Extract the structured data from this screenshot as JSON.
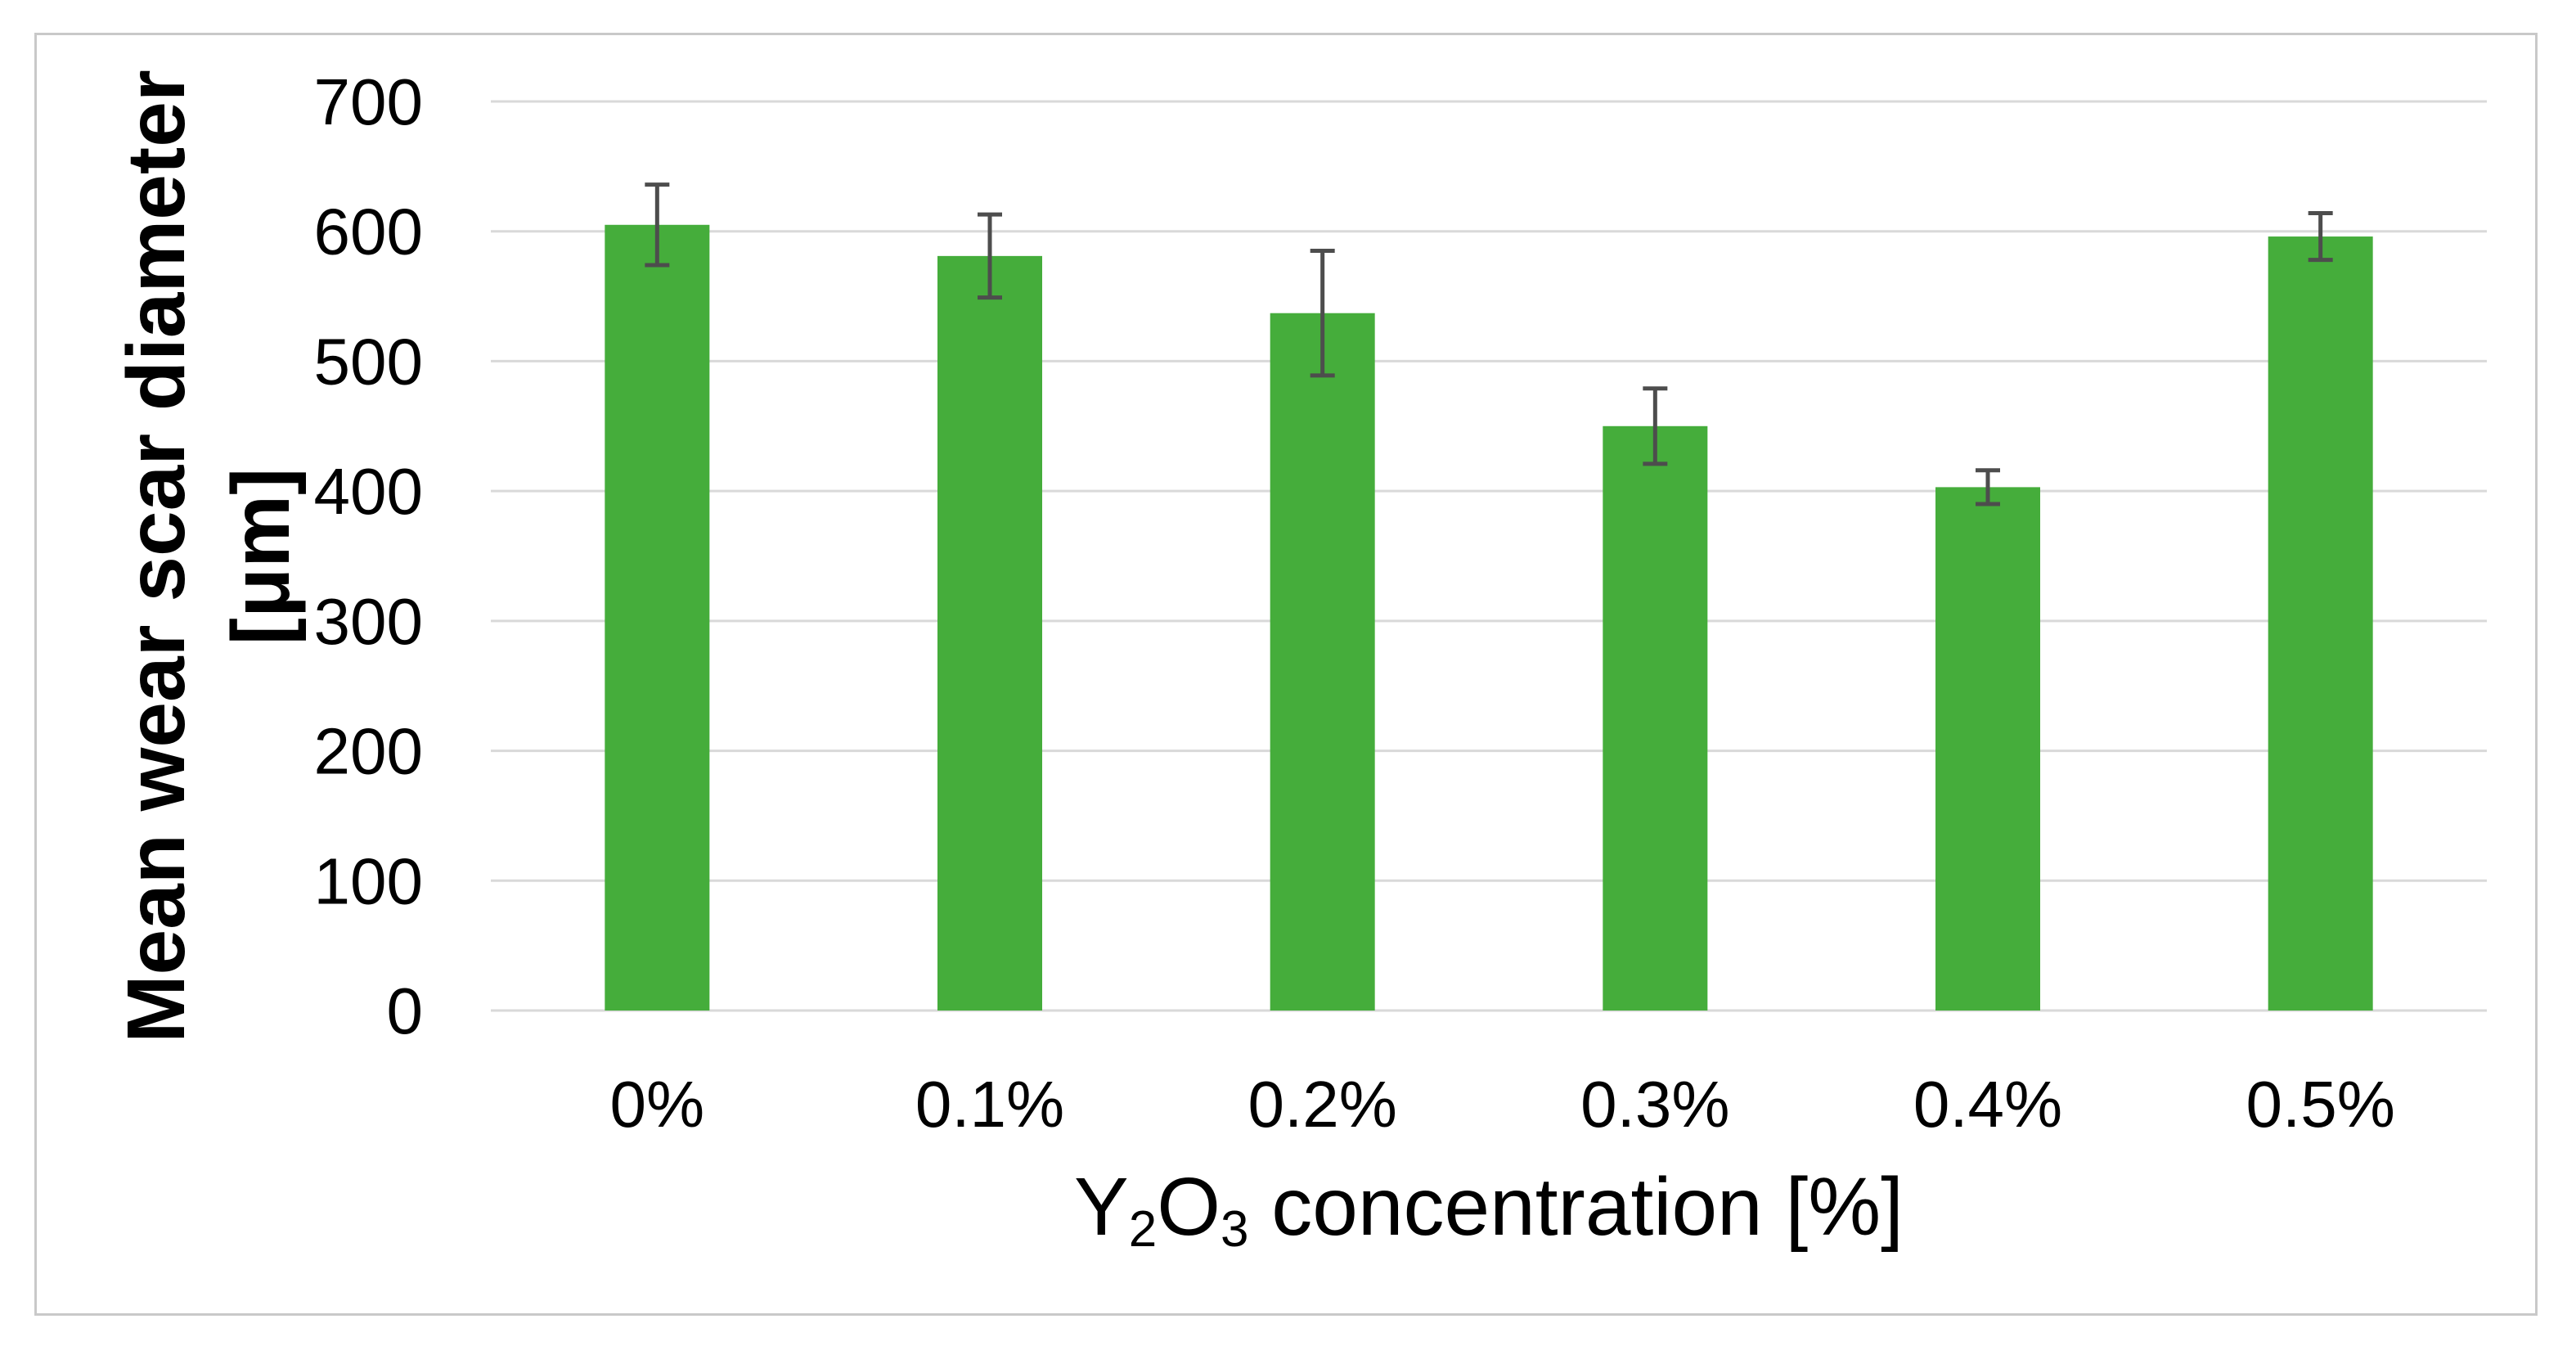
{
  "chart_data": {
    "type": "bar",
    "title": "",
    "categories": [
      "0%",
      "0.1%",
      "0.2%",
      "0.3%",
      "0.4%",
      "0.5%"
    ],
    "values": [
      605,
      581,
      537,
      450,
      403,
      596
    ],
    "error_bars_plus_minus": [
      31,
      32,
      48,
      29,
      13,
      18
    ],
    "series": [
      {
        "name": "Mean wear scar diameter",
        "values": [
          605,
          581,
          537,
          450,
          403,
          596
        ]
      }
    ],
    "xlabel": "Y2O3 concentration [%]",
    "xlabel_formula": [
      {
        "text": "Y",
        "subscript": false
      },
      {
        "text": "2",
        "subscript": true
      },
      {
        "text": "O",
        "subscript": false
      },
      {
        "text": "3",
        "subscript": true
      },
      {
        "text": " concentration [%]",
        "subscript": false
      }
    ],
    "ylabel_line1": "Mean wear scar diameter",
    "ylabel_line2": "[μm]",
    "ylim": [
      0,
      700
    ],
    "yticks": [
      0,
      100,
      200,
      300,
      400,
      500,
      600,
      700
    ],
    "grid": "horizontal-only",
    "legend": "none",
    "colors": {
      "bar": "#45AD3B",
      "error_bar": "#4D4D4D",
      "gridline": "#D9D9D9",
      "frame_border": "#C9C9C9",
      "text": "#000000",
      "background": "#FFFFFF"
    }
  }
}
